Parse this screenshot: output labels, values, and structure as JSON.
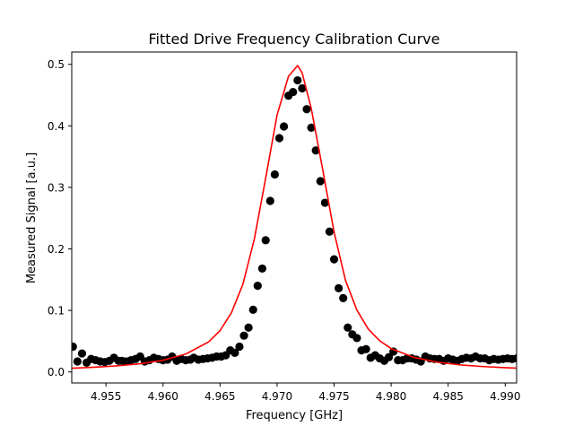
{
  "chart_data": {
    "type": "scatter",
    "title": "Fitted Drive Frequency Calibration Curve",
    "xlabel": "Frequency [GHz]",
    "ylabel": "Measured Signal [a.u.]",
    "xlim": [
      4.952,
      4.991
    ],
    "ylim": [
      -0.018,
      0.52
    ],
    "x_ticks": [
      4.955,
      4.96,
      4.965,
      4.97,
      4.975,
      4.98,
      4.985,
      4.99
    ],
    "x_tick_labels": [
      "4.955",
      "4.960",
      "4.965",
      "4.970",
      "4.975",
      "4.980",
      "4.985",
      "4.990"
    ],
    "y_ticks": [
      0.0,
      0.1,
      0.2,
      0.3,
      0.4,
      0.5
    ],
    "y_tick_labels": [
      "0.0",
      "0.1",
      "0.2",
      "0.3",
      "0.4",
      "0.5"
    ],
    "grid": false,
    "series": [
      {
        "kind": "scatter",
        "color": "#000000",
        "points": [
          [
            4.9521,
            0.041
          ],
          [
            4.9525,
            0.017
          ],
          [
            4.9529,
            0.03
          ],
          [
            4.9533,
            0.015
          ],
          [
            4.9537,
            0.021
          ],
          [
            4.9541,
            0.019
          ],
          [
            4.9545,
            0.017
          ],
          [
            4.9549,
            0.016
          ],
          [
            4.9553,
            0.018
          ],
          [
            4.9557,
            0.023
          ],
          [
            4.9561,
            0.018
          ],
          [
            4.9564,
            0.018
          ],
          [
            4.9568,
            0.017
          ],
          [
            4.9572,
            0.019
          ],
          [
            4.9576,
            0.021
          ],
          [
            4.958,
            0.025
          ],
          [
            4.9584,
            0.017
          ],
          [
            4.9588,
            0.019
          ],
          [
            4.9592,
            0.023
          ],
          [
            4.9596,
            0.021
          ],
          [
            4.96,
            0.019
          ],
          [
            4.9604,
            0.02
          ],
          [
            4.9608,
            0.025
          ],
          [
            4.9612,
            0.018
          ],
          [
            4.9616,
            0.021
          ],
          [
            4.962,
            0.019
          ],
          [
            4.9624,
            0.02
          ],
          [
            4.9627,
            0.023
          ],
          [
            4.9631,
            0.02
          ],
          [
            4.9635,
            0.021
          ],
          [
            4.9639,
            0.022
          ],
          [
            4.9643,
            0.023
          ],
          [
            4.9647,
            0.025
          ],
          [
            4.9651,
            0.025
          ],
          [
            4.9655,
            0.027
          ],
          [
            4.9659,
            0.035
          ],
          [
            4.9663,
            0.031
          ],
          [
            4.9667,
            0.041
          ],
          [
            4.9671,
            0.059
          ],
          [
            4.9675,
            0.072
          ],
          [
            4.9679,
            0.101
          ],
          [
            4.9683,
            0.14
          ],
          [
            4.9687,
            0.168
          ],
          [
            4.969,
            0.214
          ],
          [
            4.9694,
            0.278
          ],
          [
            4.9698,
            0.321
          ],
          [
            4.9702,
            0.38
          ],
          [
            4.9706,
            0.399
          ],
          [
            4.971,
            0.449
          ],
          [
            4.9714,
            0.455
          ],
          [
            4.9718,
            0.474
          ],
          [
            4.9722,
            0.461
          ],
          [
            4.9726,
            0.427
          ],
          [
            4.973,
            0.397
          ],
          [
            4.9734,
            0.36
          ],
          [
            4.9738,
            0.31
          ],
          [
            4.9742,
            0.275
          ],
          [
            4.9746,
            0.228
          ],
          [
            4.975,
            0.183
          ],
          [
            4.9754,
            0.136
          ],
          [
            4.9758,
            0.12
          ],
          [
            4.9762,
            0.072
          ],
          [
            4.9766,
            0.061
          ],
          [
            4.977,
            0.055
          ],
          [
            4.9774,
            0.035
          ],
          [
            4.9778,
            0.037
          ],
          [
            4.9782,
            0.023
          ],
          [
            4.9786,
            0.027
          ],
          [
            4.979,
            0.022
          ],
          [
            4.9794,
            0.018
          ],
          [
            4.9798,
            0.024
          ],
          [
            4.9802,
            0.033
          ],
          [
            4.9806,
            0.019
          ],
          [
            4.981,
            0.019
          ],
          [
            4.9814,
            0.022
          ],
          [
            4.9818,
            0.022
          ],
          [
            4.9822,
            0.02
          ],
          [
            4.9826,
            0.017
          ],
          [
            4.983,
            0.025
          ],
          [
            4.9834,
            0.022
          ],
          [
            4.9838,
            0.021
          ],
          [
            4.9842,
            0.021
          ],
          [
            4.9846,
            0.018
          ],
          [
            4.985,
            0.022
          ],
          [
            4.9854,
            0.02
          ],
          [
            4.9858,
            0.018
          ],
          [
            4.9862,
            0.021
          ],
          [
            4.9866,
            0.023
          ],
          [
            4.987,
            0.022
          ],
          [
            4.9874,
            0.025
          ],
          [
            4.9878,
            0.022
          ],
          [
            4.9882,
            0.022
          ],
          [
            4.9886,
            0.019
          ],
          [
            4.989,
            0.021
          ],
          [
            4.9894,
            0.02
          ],
          [
            4.9898,
            0.021
          ],
          [
            4.9902,
            0.022
          ],
          [
            4.9906,
            0.021
          ],
          [
            4.991,
            0.022
          ]
        ]
      },
      {
        "kind": "line",
        "color": "#ff0000",
        "points": [
          [
            4.952,
            0.006
          ],
          [
            4.954,
            0.0076
          ],
          [
            4.956,
            0.0099
          ],
          [
            4.958,
            0.0133
          ],
          [
            4.96,
            0.019
          ],
          [
            4.962,
            0.029
          ],
          [
            4.964,
            0.0488
          ],
          [
            4.965,
            0.0671
          ],
          [
            4.966,
            0.0962
          ],
          [
            4.967,
            0.1423
          ],
          [
            4.968,
            0.2153
          ],
          [
            4.969,
            0.3149
          ],
          [
            4.97,
            0.4176
          ],
          [
            4.971,
            0.4804
          ],
          [
            4.9718,
            0.498
          ],
          [
            4.9722,
            0.486
          ],
          [
            4.973,
            0.428
          ],
          [
            4.974,
            0.329
          ],
          [
            4.975,
            0.227
          ],
          [
            4.976,
            0.1489
          ],
          [
            4.977,
            0.1004
          ],
          [
            4.978,
            0.0696
          ],
          [
            4.979,
            0.0506
          ],
          [
            4.98,
            0.038
          ],
          [
            4.982,
            0.0236
          ],
          [
            4.984,
            0.0159
          ],
          [
            4.986,
            0.0115
          ],
          [
            4.988,
            0.0088
          ],
          [
            4.99,
            0.0069
          ],
          [
            4.991,
            0.0062
          ]
        ]
      }
    ]
  }
}
